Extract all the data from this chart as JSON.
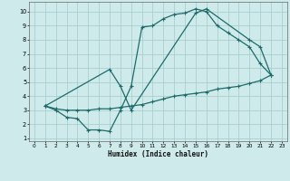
{
  "xlabel": "Humidex (Indice chaleur)",
  "xlim": [
    -0.5,
    23.5
  ],
  "ylim": [
    0.8,
    10.7
  ],
  "xticks": [
    0,
    1,
    2,
    3,
    4,
    5,
    6,
    7,
    8,
    9,
    10,
    11,
    12,
    13,
    14,
    15,
    16,
    17,
    18,
    19,
    20,
    21,
    22,
    23
  ],
  "yticks": [
    1,
    2,
    3,
    4,
    5,
    6,
    7,
    8,
    9,
    10
  ],
  "bg_color": "#ceeaea",
  "grid_color": "#aacece",
  "line_color": "#1e6b6b",
  "line1_x": [
    1,
    2,
    3,
    4,
    5,
    6,
    7,
    8,
    9,
    10,
    11,
    12,
    13,
    14,
    15,
    16,
    17,
    18,
    19,
    20,
    21,
    22
  ],
  "line1_y": [
    3.3,
    3.0,
    2.5,
    2.4,
    1.6,
    1.6,
    1.5,
    3.0,
    4.7,
    8.9,
    9.0,
    9.5,
    9.8,
    9.9,
    10.2,
    10.0,
    9.0,
    8.5,
    8.0,
    7.5,
    6.3,
    5.5
  ],
  "line2_x": [
    1,
    2,
    3,
    4,
    5,
    6,
    7,
    8,
    9,
    10,
    11,
    12,
    13,
    14,
    15,
    16,
    17,
    18,
    19,
    20,
    21,
    22
  ],
  "line2_y": [
    3.3,
    3.1,
    3.0,
    3.0,
    3.0,
    3.1,
    3.1,
    3.2,
    3.3,
    3.4,
    3.6,
    3.8,
    4.0,
    4.1,
    4.2,
    4.3,
    4.5,
    4.6,
    4.7,
    4.9,
    5.1,
    5.5
  ],
  "line3_x": [
    1,
    7,
    8,
    9,
    15,
    16,
    20,
    21,
    22
  ],
  "line3_y": [
    3.3,
    5.9,
    4.7,
    3.0,
    9.9,
    10.2,
    8.0,
    7.5,
    5.5
  ]
}
